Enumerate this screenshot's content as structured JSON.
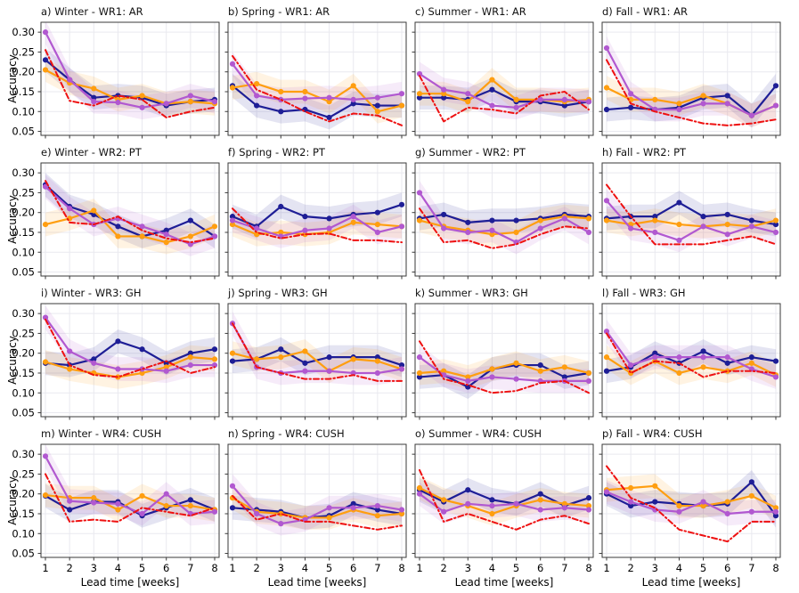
{
  "figure": {
    "kind": "4x4 small-multiples line chart grid",
    "columns_seasons": [
      "Winter",
      "Spring",
      "Summer",
      "Fall"
    ],
    "rows_regimes": [
      "WR1: AR",
      "WR2: PT",
      "WR3: GH",
      "WR4: CUSH"
    ]
  },
  "chart_data": {
    "type": "line",
    "x": [
      1,
      2,
      3,
      4,
      5,
      6,
      7,
      8
    ],
    "xtick_labels": [
      "1",
      "2",
      "3",
      "4",
      "5",
      "6",
      "7",
      "8"
    ],
    "xlabel": "Lead time [weeks]",
    "ylabel": "Accuracy",
    "ylim": [
      0.04,
      0.325
    ],
    "yticks": [
      0.05,
      0.1,
      0.15,
      0.2,
      0.25,
      0.3
    ],
    "ytick_labels": [
      "0.05",
      "0.10",
      "0.15",
      "0.20",
      "0.25",
      "0.30"
    ],
    "grid": true,
    "legend": "none",
    "band_halfwidth": 0.03,
    "band_opacity": 0.12,
    "colors": {
      "navy": "#1e1e96",
      "orange": "#ff9e10",
      "purple": "#b158d0",
      "red": "#ee1111",
      "spine": "#3a3a3a",
      "gridline": "#e9e9ef"
    },
    "series_meta": [
      {
        "key": "navy",
        "name": "dark-blue-solid-markers",
        "color": "#1e1e96",
        "marker": true,
        "dash": "",
        "band": true
      },
      {
        "key": "orange",
        "name": "orange-solid-markers",
        "color": "#ff9e10",
        "marker": true,
        "dash": "",
        "band": true
      },
      {
        "key": "purple",
        "name": "purple-solid-markers",
        "color": "#b158d0",
        "marker": true,
        "dash": "",
        "band": true
      },
      {
        "key": "red",
        "name": "red-dash-dot",
        "color": "#ee1111",
        "marker": false,
        "dash": "6 3 1.5 3",
        "band": false
      }
    ],
    "panels": [
      {
        "id": "a",
        "title": "a) Winter - WR1: AR",
        "navy": [
          0.23,
          0.18,
          0.135,
          0.14,
          0.135,
          0.115,
          0.125,
          0.13
        ],
        "orange": [
          0.205,
          0.172,
          0.158,
          0.13,
          0.14,
          0.12,
          0.125,
          0.12
        ],
        "purple": [
          0.3,
          0.18,
          0.125,
          0.123,
          0.11,
          0.12,
          0.14,
          0.125
        ],
        "red": [
          0.255,
          0.127,
          0.115,
          0.14,
          0.13,
          0.085,
          0.1,
          0.11
        ]
      },
      {
        "id": "b",
        "title": "b) Spring - WR1: AR",
        "navy": [
          0.165,
          0.115,
          0.1,
          0.105,
          0.085,
          0.12,
          0.115,
          0.115
        ],
        "orange": [
          0.16,
          0.17,
          0.15,
          0.15,
          0.125,
          0.165,
          0.1,
          0.115
        ],
        "purple": [
          0.22,
          0.14,
          0.13,
          0.133,
          0.135,
          0.13,
          0.135,
          0.145
        ],
        "red": [
          0.24,
          0.155,
          0.13,
          0.1,
          0.075,
          0.095,
          0.09,
          0.065
        ]
      },
      {
        "id": "c",
        "title": "c) Summer - WR1: AR",
        "navy": [
          0.135,
          0.135,
          0.13,
          0.155,
          0.125,
          0.125,
          0.115,
          0.125
        ],
        "orange": [
          0.145,
          0.145,
          0.125,
          0.18,
          0.13,
          0.13,
          0.125,
          0.13
        ],
        "purple": [
          0.195,
          0.155,
          0.145,
          0.115,
          0.11,
          0.13,
          0.13,
          0.125
        ],
        "red": [
          0.19,
          0.075,
          0.11,
          0.105,
          0.095,
          0.14,
          0.15,
          0.105
        ]
      },
      {
        "id": "d",
        "title": "d) Fall - WR1: AR",
        "navy": [
          0.105,
          0.11,
          0.105,
          0.11,
          0.135,
          0.14,
          0.09,
          0.165
        ],
        "orange": [
          0.16,
          0.13,
          0.13,
          0.12,
          0.14,
          0.12,
          0.09,
          0.115
        ],
        "purple": [
          0.26,
          0.145,
          0.105,
          0.105,
          0.12,
          0.12,
          0.09,
          0.115
        ],
        "red": [
          0.23,
          0.12,
          0.1,
          0.085,
          0.07,
          0.065,
          0.07,
          0.08
        ]
      },
      {
        "id": "e",
        "title": "e) Winter - WR2: PT",
        "navy": [
          0.27,
          0.215,
          0.195,
          0.165,
          0.14,
          0.155,
          0.18,
          0.14
        ],
        "orange": [
          0.17,
          0.185,
          0.205,
          0.14,
          0.14,
          0.125,
          0.14,
          0.165
        ],
        "purple": [
          0.265,
          0.21,
          0.17,
          0.185,
          0.165,
          0.145,
          0.12,
          0.14
        ],
        "red": [
          0.28,
          0.175,
          0.17,
          0.19,
          0.155,
          0.135,
          0.125,
          0.135
        ]
      },
      {
        "id": "f",
        "title": "f) Spring - WR2: PT",
        "navy": [
          0.19,
          0.165,
          0.215,
          0.19,
          0.185,
          0.195,
          0.2,
          0.22
        ],
        "orange": [
          0.17,
          0.145,
          0.15,
          0.145,
          0.15,
          0.175,
          0.17,
          0.165
        ],
        "purple": [
          0.18,
          0.16,
          0.14,
          0.155,
          0.16,
          0.19,
          0.15,
          0.165
        ],
        "red": [
          0.21,
          0.15,
          0.135,
          0.145,
          0.147,
          0.13,
          0.13,
          0.125
        ]
      },
      {
        "id": "g",
        "title": "g) Summer - WR2: PT",
        "navy": [
          0.185,
          0.195,
          0.175,
          0.18,
          0.18,
          0.185,
          0.195,
          0.19
        ],
        "orange": [
          0.18,
          0.165,
          0.155,
          0.145,
          0.15,
          0.18,
          0.19,
          0.185
        ],
        "purple": [
          0.25,
          0.16,
          0.15,
          0.155,
          0.125,
          0.16,
          0.185,
          0.15
        ],
        "red": [
          0.21,
          0.125,
          0.13,
          0.11,
          0.12,
          0.145,
          0.165,
          0.16
        ]
      },
      {
        "id": "h",
        "title": "h) Fall - WR2: PT",
        "navy": [
          0.185,
          0.19,
          0.19,
          0.225,
          0.19,
          0.195,
          0.18,
          0.17
        ],
        "orange": [
          0.18,
          0.17,
          0.18,
          0.17,
          0.165,
          0.17,
          0.165,
          0.18
        ],
        "purple": [
          0.23,
          0.16,
          0.15,
          0.13,
          0.165,
          0.145,
          0.165,
          0.15
        ],
        "red": [
          0.27,
          0.19,
          0.12,
          0.12,
          0.12,
          0.13,
          0.14,
          0.12
        ]
      },
      {
        "id": "i",
        "title": "i) Winter - WR3: GH",
        "navy": [
          0.175,
          0.17,
          0.185,
          0.23,
          0.21,
          0.175,
          0.2,
          0.21
        ],
        "orange": [
          0.178,
          0.16,
          0.15,
          0.14,
          0.15,
          0.165,
          0.19,
          0.185
        ],
        "purple": [
          0.29,
          0.205,
          0.175,
          0.16,
          0.16,
          0.155,
          0.17,
          0.17
        ],
        "red": [
          0.285,
          0.17,
          0.145,
          0.14,
          0.16,
          0.18,
          0.15,
          0.165
        ]
      },
      {
        "id": "j",
        "title": "j) Spring - WR3: GH",
        "navy": [
          0.18,
          0.185,
          0.21,
          0.175,
          0.19,
          0.19,
          0.19,
          0.17
        ],
        "orange": [
          0.2,
          0.185,
          0.19,
          0.205,
          0.155,
          0.185,
          0.18,
          0.16
        ],
        "purple": [
          0.275,
          0.165,
          0.15,
          0.155,
          0.155,
          0.15,
          0.15,
          0.16
        ],
        "red": [
          0.275,
          0.165,
          0.15,
          0.135,
          0.135,
          0.145,
          0.13,
          0.13
        ]
      },
      {
        "id": "k",
        "title": "k) Summer - WR3: GH",
        "navy": [
          0.14,
          0.145,
          0.115,
          0.16,
          0.17,
          0.17,
          0.14,
          0.15
        ],
        "orange": [
          0.15,
          0.155,
          0.14,
          0.16,
          0.175,
          0.155,
          0.165,
          0.15
        ],
        "purple": [
          0.19,
          0.145,
          0.13,
          0.14,
          0.135,
          0.13,
          0.13,
          0.13
        ],
        "red": [
          0.23,
          0.135,
          0.12,
          0.1,
          0.105,
          0.125,
          0.13,
          0.1
        ]
      },
      {
        "id": "l",
        "title": "l) Fall - WR3: GH",
        "navy": [
          0.155,
          0.165,
          0.2,
          0.175,
          0.205,
          0.175,
          0.19,
          0.18
        ],
        "orange": [
          0.19,
          0.15,
          0.18,
          0.15,
          0.165,
          0.155,
          0.175,
          0.145
        ],
        "purple": [
          0.255,
          0.17,
          0.19,
          0.19,
          0.19,
          0.19,
          0.16,
          0.14
        ],
        "red": [
          0.25,
          0.15,
          0.18,
          0.175,
          0.14,
          0.155,
          0.155,
          0.15
        ]
      },
      {
        "id": "m",
        "title": "m) Winter - WR4: CUSH",
        "navy": [
          0.195,
          0.16,
          0.18,
          0.18,
          0.145,
          0.165,
          0.185,
          0.16
        ],
        "orange": [
          0.197,
          0.19,
          0.19,
          0.16,
          0.195,
          0.17,
          0.17,
          0.16
        ],
        "purple": [
          0.295,
          0.182,
          0.178,
          0.175,
          0.15,
          0.2,
          0.15,
          0.155
        ],
        "red": [
          0.25,
          0.13,
          0.135,
          0.13,
          0.165,
          0.155,
          0.145,
          0.165
        ]
      },
      {
        "id": "n",
        "title": "n) Spring - WR4: CUSH",
        "navy": [
          0.165,
          0.16,
          0.155,
          0.14,
          0.145,
          0.175,
          0.16,
          0.15
        ],
        "orange": [
          0.19,
          0.155,
          0.15,
          0.14,
          0.14,
          0.16,
          0.145,
          0.15
        ],
        "purple": [
          0.22,
          0.15,
          0.125,
          0.135,
          0.165,
          0.165,
          0.17,
          0.16
        ],
        "red": [
          0.195,
          0.135,
          0.15,
          0.13,
          0.13,
          0.12,
          0.11,
          0.12
        ]
      },
      {
        "id": "o",
        "title": "o) Summer - WR4: CUSH",
        "navy": [
          0.21,
          0.18,
          0.21,
          0.185,
          0.175,
          0.2,
          0.17,
          0.19
        ],
        "orange": [
          0.215,
          0.185,
          0.17,
          0.15,
          0.17,
          0.185,
          0.175,
          0.17
        ],
        "purple": [
          0.2,
          0.155,
          0.175,
          0.17,
          0.175,
          0.16,
          0.165,
          0.16
        ],
        "red": [
          0.26,
          0.13,
          0.15,
          0.13,
          0.11,
          0.135,
          0.145,
          0.125
        ]
      },
      {
        "id": "p",
        "title": "p) Fall - WR4: CUSH",
        "navy": [
          0.2,
          0.17,
          0.18,
          0.175,
          0.17,
          0.175,
          0.23,
          0.145
        ],
        "orange": [
          0.21,
          0.215,
          0.22,
          0.17,
          0.17,
          0.18,
          0.195,
          0.165
        ],
        "purple": [
          0.205,
          0.18,
          0.16,
          0.155,
          0.18,
          0.15,
          0.155,
          0.155
        ],
        "red": [
          0.27,
          0.19,
          0.165,
          0.11,
          0.095,
          0.08,
          0.13,
          0.13
        ]
      }
    ]
  }
}
